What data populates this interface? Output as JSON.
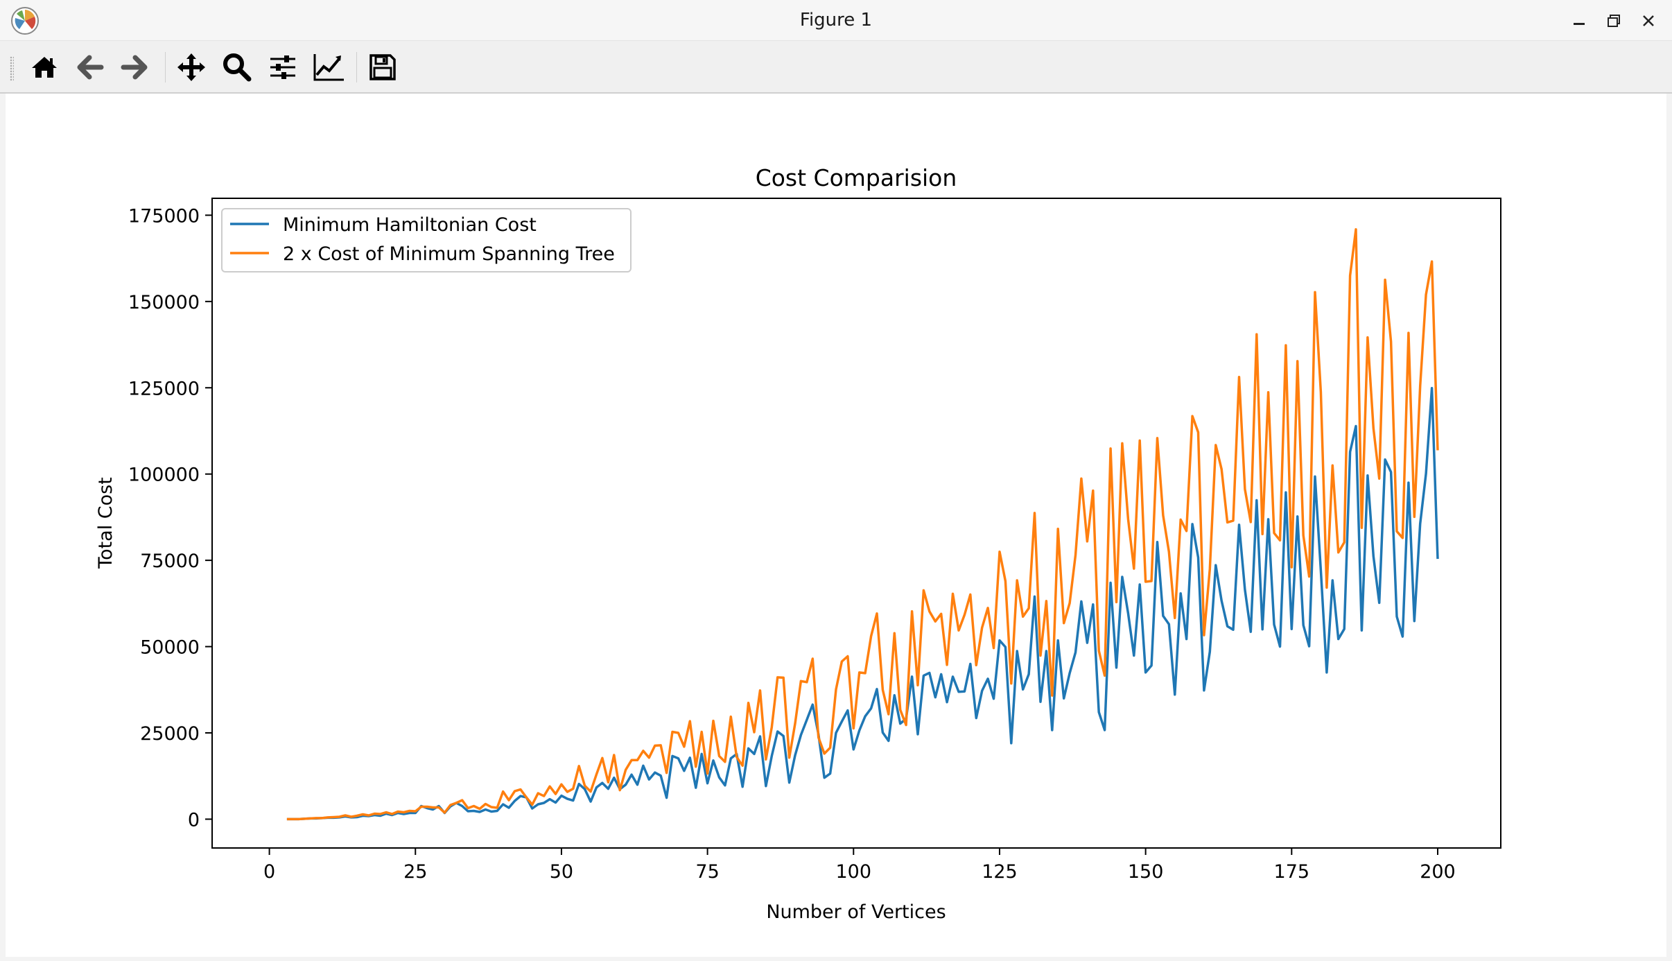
{
  "window": {
    "title": "Figure 1"
  },
  "toolbar": {
    "tools": [
      {
        "icon": "home-icon"
      },
      {
        "icon": "back-arrow-icon"
      },
      {
        "icon": "forward-arrow-icon"
      },
      {
        "icon": "pan-icon"
      },
      {
        "icon": "zoom-icon"
      },
      {
        "icon": "configure-subplots-icon"
      },
      {
        "icon": "edit-axis-icon"
      },
      {
        "icon": "save-icon"
      }
    ]
  },
  "colors": {
    "series1": "#1f77b4",
    "series2": "#ff7f0e"
  },
  "chart_data": {
    "type": "line",
    "title": "Cost Comparision",
    "xlabel": "Number of Vertices",
    "ylabel": "Total Cost",
    "xlim": [
      -9.8,
      210.8
    ],
    "ylim": [
      -8350,
      179900
    ],
    "xticks": [
      0,
      25,
      50,
      75,
      100,
      125,
      150,
      175,
      200
    ],
    "yticks": [
      0,
      25000,
      50000,
      75000,
      100000,
      125000,
      150000,
      175000
    ],
    "legend_position": "upper left",
    "grid": false,
    "x_start": 3,
    "series": [
      {
        "name": "Minimum Hamiltonian Cost",
        "color": "#1f77b4",
        "values": [
          0,
          0,
          0,
          100,
          200,
          200,
          300,
          400,
          400,
          500,
          800,
          500,
          600,
          1000,
          900,
          1200,
          1000,
          1600,
          1200,
          1800,
          1500,
          1800,
          1800,
          3800,
          3200,
          2800,
          3800,
          1800,
          3700,
          4700,
          3800,
          2300,
          2400,
          2100,
          2800,
          2200,
          2400,
          4300,
          3300,
          5300,
          6700,
          6300,
          3100,
          4300,
          4700,
          5800,
          4800,
          6800,
          5900,
          5400,
          10200,
          8700,
          5100,
          9200,
          10500,
          8800,
          12000,
          8700,
          10000,
          12900,
          10000,
          15500,
          11500,
          13500,
          12600,
          6200,
          18300,
          17600,
          14000,
          17800,
          9100,
          18900,
          10400,
          17000,
          12100,
          9800,
          17600,
          18900,
          9400,
          20500,
          18900,
          24000,
          9600,
          18300,
          25400,
          24100,
          10600,
          18500,
          24400,
          28800,
          33200,
          24600,
          12000,
          13200,
          25000,
          28300,
          31500,
          20200,
          25700,
          29800,
          32100,
          37700,
          25100,
          22700,
          35900,
          27700,
          29100,
          41300,
          24600,
          41600,
          42400,
          35300,
          42000,
          33900,
          41300,
          36900,
          37000,
          45000,
          29300,
          37200,
          40700,
          34900,
          51800,
          49900,
          22000,
          48700,
          37600,
          42000,
          64500,
          34000,
          48700,
          25800,
          51800,
          35000,
          42300,
          48300,
          63100,
          51100,
          62200,
          31000,
          25800,
          68500,
          43900,
          70200,
          59700,
          47400,
          68000,
          42500,
          44500,
          80300,
          58900,
          56500,
          36100,
          65400,
          52200,
          85500,
          75800,
          37300,
          48500,
          73600,
          63300,
          55900,
          54900,
          85300,
          66500,
          54300,
          92400,
          55000,
          86900,
          56400,
          50000,
          94700,
          55100,
          87700,
          56200,
          50100,
          99300,
          72100,
          42500,
          69200,
          52200,
          55100,
          106400,
          113900,
          54700,
          99600,
          76200,
          62700,
          104200,
          100600,
          58700,
          52900,
          97500,
          57400,
          85600,
          100100,
          124900,
          75400
        ]
      },
      {
        "name": "2 x Cost of Minimum Spanning Tree",
        "color": "#ff7f0e",
        "values": [
          0,
          0,
          0,
          100,
          200,
          300,
          300,
          500,
          600,
          700,
          1100,
          700,
          1000,
          1400,
          1100,
          1600,
          1500,
          2000,
          1500,
          2200,
          2000,
          2400,
          2300,
          3600,
          3600,
          3400,
          3400,
          1900,
          4100,
          4700,
          5500,
          3200,
          3800,
          3000,
          4400,
          3500,
          3300,
          8000,
          5500,
          8100,
          8600,
          6300,
          4200,
          7500,
          6700,
          9500,
          7300,
          10100,
          7900,
          8800,
          15400,
          9700,
          8000,
          13000,
          17700,
          10700,
          18600,
          8400,
          14300,
          17100,
          17100,
          19800,
          17800,
          21300,
          21400,
          13400,
          25300,
          25000,
          21000,
          28400,
          15200,
          25300,
          13200,
          28500,
          18300,
          16600,
          29700,
          18000,
          15500,
          33700,
          25200,
          37300,
          17300,
          26600,
          41100,
          41000,
          17800,
          27700,
          40000,
          39700,
          46500,
          23700,
          19000,
          20700,
          37600,
          45700,
          47200,
          26300,
          42500,
          42300,
          53000,
          59600,
          37500,
          30400,
          53900,
          31700,
          27300,
          60200,
          38800,
          66300,
          60200,
          57300,
          59500,
          44700,
          65300,
          54700,
          59200,
          65100,
          44600,
          55500,
          61200,
          49600,
          77500,
          69000,
          39300,
          69200,
          58700,
          61100,
          88700,
          47400,
          63200,
          35800,
          84100,
          56800,
          62600,
          76500,
          98700,
          80500,
          95200,
          48800,
          41600,
          107400,
          62900,
          108900,
          87000,
          72600,
          109700,
          68800,
          69000,
          110400,
          88000,
          77500,
          58300,
          86800,
          83500,
          116800,
          112100,
          53300,
          72500,
          108400,
          101400,
          86000,
          86500,
          128100,
          95600,
          86100,
          140500,
          82600,
          123700,
          82900,
          80800,
          137300,
          73000,
          132700,
          82200,
          70300,
          152700,
          123800,
          67100,
          102500,
          77300,
          80200,
          157500,
          170900,
          84400,
          139600,
          113300,
          98700,
          156300,
          138400,
          83400,
          81500,
          140900,
          87600,
          125500,
          152000,
          161600,
          106900
        ]
      }
    ]
  }
}
